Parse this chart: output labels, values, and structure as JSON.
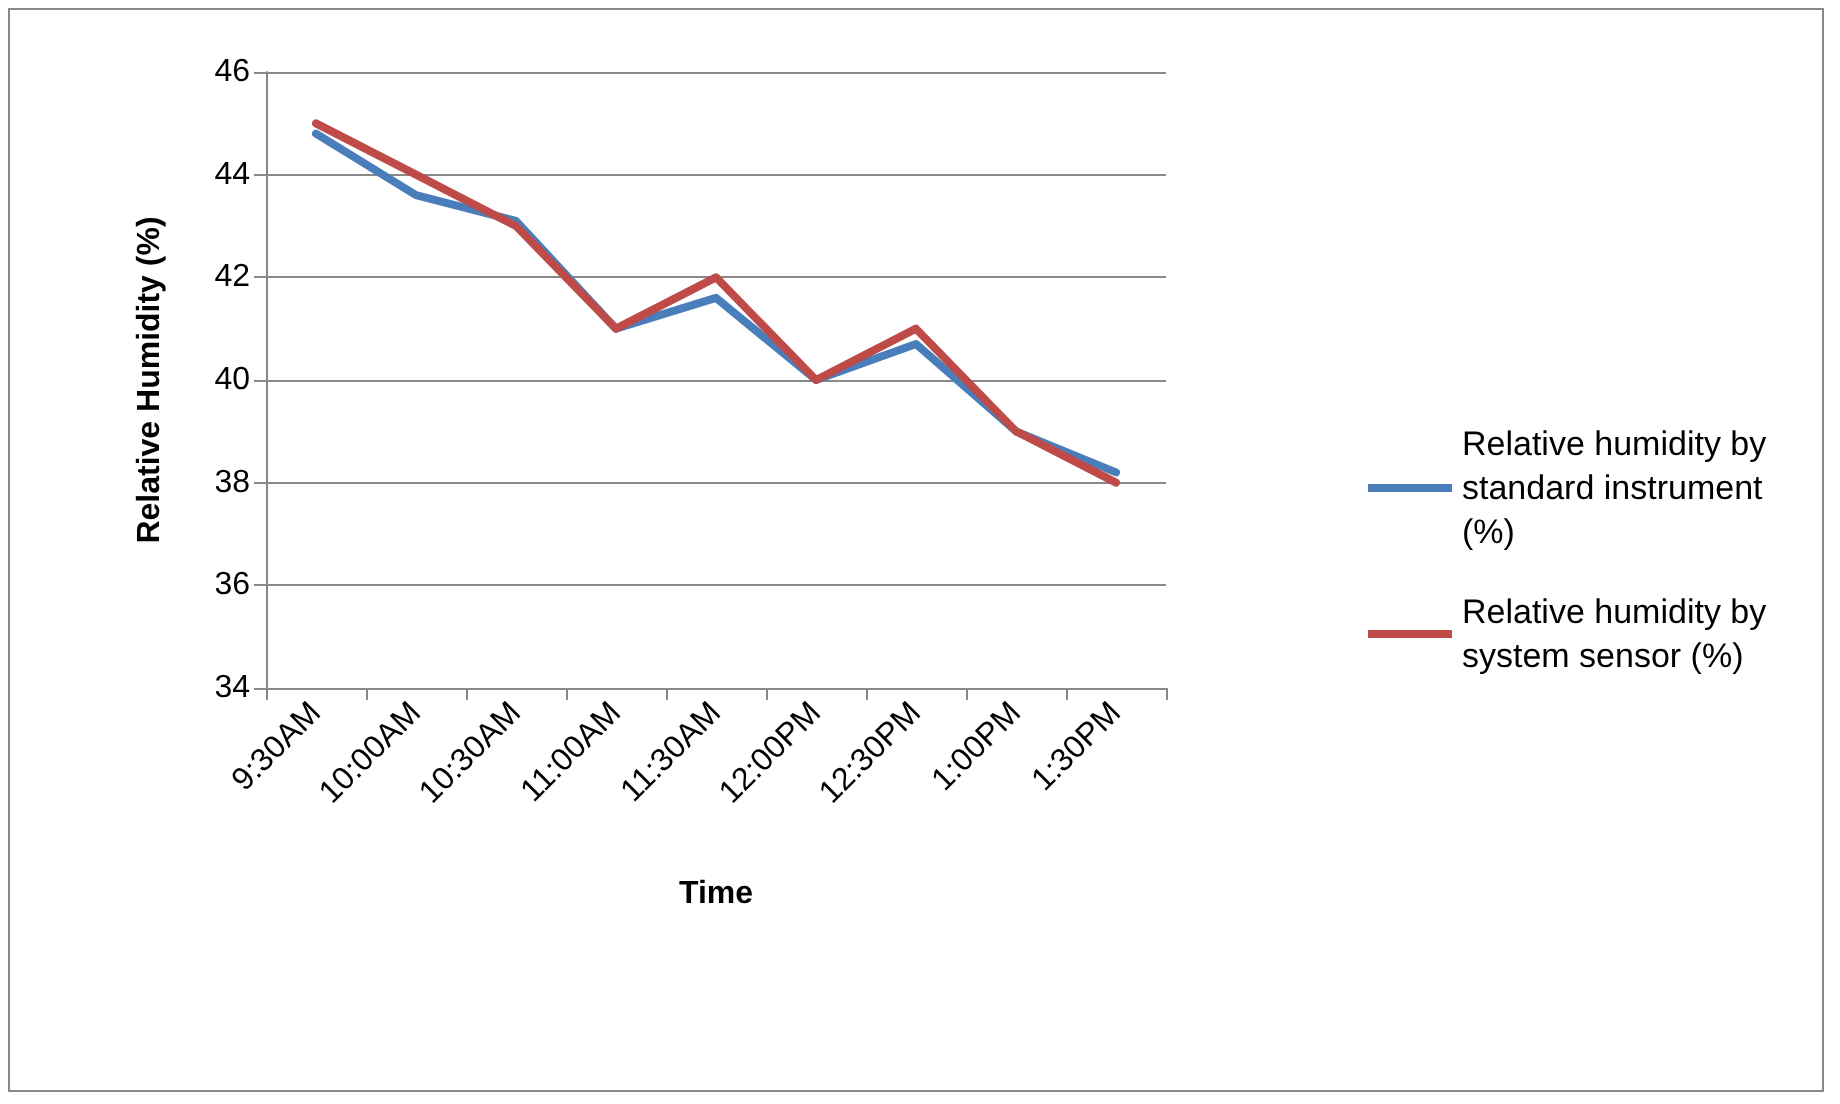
{
  "chart_data": {
    "type": "line",
    "xlabel": "Time",
    "ylabel": "Relative Humidity (%)",
    "categories": [
      "9:30AM",
      "10:00AM",
      "10:30AM",
      "11:00AM",
      "11:30AM",
      "12:00PM",
      "12:30PM",
      "1:00PM",
      "1:30PM"
    ],
    "series": [
      {
        "name": "Relative humidity by standard instrument (%)",
        "color": "#4a7ebb",
        "values": [
          44.8,
          43.6,
          43.1,
          41,
          41.6,
          40,
          40.7,
          39,
          38.2
        ]
      },
      {
        "name": "Relative humidity by system sensor (%)",
        "color": "#be4b48",
        "values": [
          45,
          44,
          43,
          41,
          42,
          40,
          41,
          39,
          38
        ]
      }
    ],
    "ylim": [
      34,
      46
    ],
    "yticks": [
      34,
      36,
      38,
      40,
      42,
      44,
      46
    ],
    "grid": "y",
    "legend": "right",
    "marker": "none",
    "line_style": "solid"
  }
}
